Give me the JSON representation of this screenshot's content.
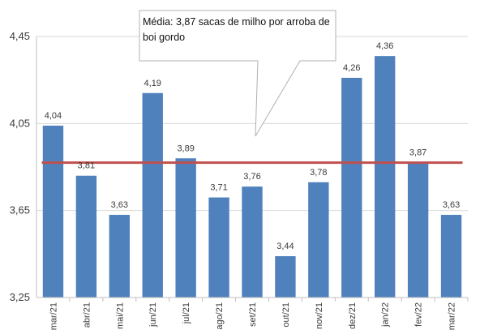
{
  "chart_data": {
    "type": "bar",
    "categories": [
      "mar/21",
      "abr/21",
      "mai/21",
      "jun/21",
      "jul/21",
      "ago/21",
      "set/21",
      "out/21",
      "nov/21",
      "dez/21",
      "jan/22",
      "fev/22",
      "mar/22"
    ],
    "values": [
      4.04,
      3.81,
      3.63,
      4.19,
      3.89,
      3.71,
      3.76,
      3.44,
      3.78,
      4.26,
      4.36,
      3.87,
      3.63
    ],
    "value_labels": [
      "4,04",
      "3,81",
      "3,63",
      "4,19",
      "3,89",
      "3,71",
      "3,76",
      "3,44",
      "3,78",
      "4,26",
      "4,36",
      "3,87",
      "3,63"
    ],
    "average": 3.87,
    "ylim": [
      3.25,
      4.45
    ],
    "yticks": [
      3.25,
      3.65,
      4.05,
      4.45
    ],
    "ytick_labels": [
      "3,25",
      "3,65",
      "4,05",
      "4,45"
    ],
    "annotation": "Média: 3,87 sacas de milho por arroba de boi gordo",
    "title": "",
    "xlabel": "",
    "ylabel": "",
    "grid": true,
    "legend": "none"
  },
  "colors": {
    "bar": "#4f81bd",
    "average_line": "#c0504d",
    "grid": "#d9d9d9",
    "axis": "#bfbfbf"
  }
}
